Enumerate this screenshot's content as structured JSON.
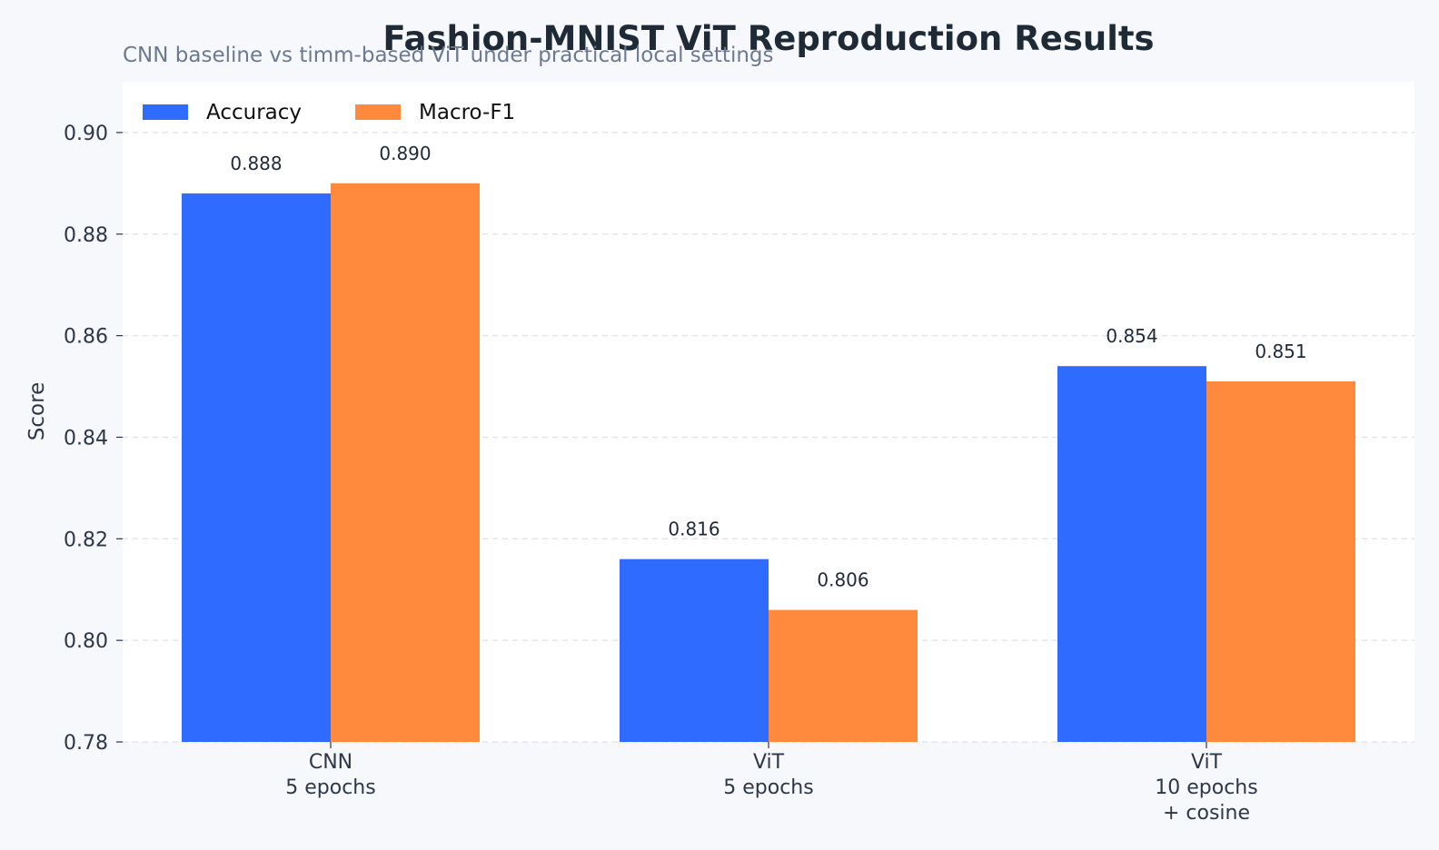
{
  "chart_data": {
    "type": "bar",
    "title": "Fashion-MNIST ViT Reproduction Results",
    "subtitle": "CNN baseline vs timm-based ViT under practical local settings",
    "ylabel": "Score",
    "xlabel": "",
    "ylim": [
      0.78,
      0.91
    ],
    "yticks": [
      0.78,
      0.8,
      0.82,
      0.84,
      0.86,
      0.88,
      0.9
    ],
    "ytick_labels": [
      "0.78",
      "0.80",
      "0.82",
      "0.84",
      "0.86",
      "0.88",
      "0.90"
    ],
    "categories": [
      [
        "CNN",
        "5 epochs"
      ],
      [
        "ViT",
        "5 epochs"
      ],
      [
        "ViT",
        "10 epochs",
        "+ cosine"
      ]
    ],
    "series": [
      {
        "name": "Accuracy",
        "color": "#2f6bff",
        "values": [
          0.888,
          0.816,
          0.854
        ],
        "labels": [
          "0.888",
          "0.816",
          "0.854"
        ]
      },
      {
        "name": "Macro-F1",
        "color": "#ff8a3d",
        "values": [
          0.89,
          0.806,
          0.851
        ],
        "labels": [
          "0.890",
          "0.806",
          "0.851"
        ]
      }
    ],
    "grid": true,
    "legend_position": "top-left"
  }
}
